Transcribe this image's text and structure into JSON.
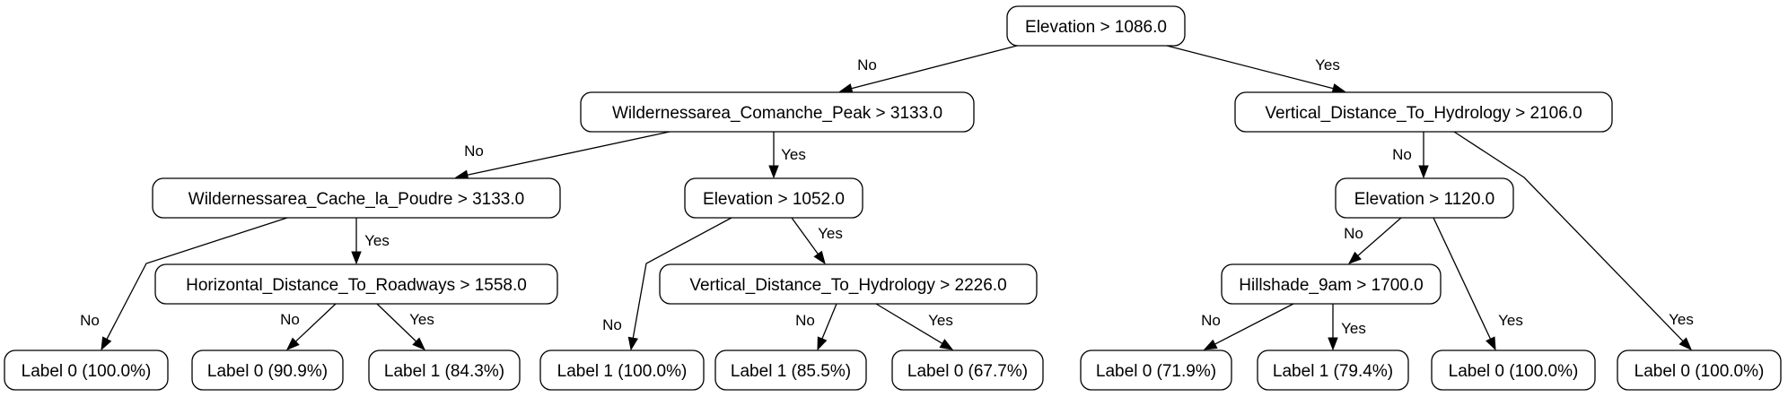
{
  "tree": {
    "nodes": [
      {
        "id": "n0",
        "text": "Elevation > 1086.0"
      },
      {
        "id": "n1",
        "text": "Wildernessarea_Comanche_Peak > 3133.0"
      },
      {
        "id": "n2",
        "text": "Vertical_Distance_To_Hydrology > 2106.0"
      },
      {
        "id": "n3",
        "text": "Wildernessarea_Cache_la_Poudre > 3133.0"
      },
      {
        "id": "n4",
        "text": "Elevation > 1052.0"
      },
      {
        "id": "n5",
        "text": "Elevation > 1120.0"
      },
      {
        "id": "n6",
        "text": "Horizontal_Distance_To_Roadways > 1558.0"
      },
      {
        "id": "n7",
        "text": "Vertical_Distance_To_Hydrology > 2226.0"
      },
      {
        "id": "n8",
        "text": "Hillshade_9am > 1700.0"
      },
      {
        "id": "l1",
        "text": "Label 0 (100.0%)"
      },
      {
        "id": "l2",
        "text": "Label 0 (90.9%)"
      },
      {
        "id": "l3",
        "text": "Label 1 (84.3%)"
      },
      {
        "id": "l4",
        "text": "Label 1 (100.0%)"
      },
      {
        "id": "l5",
        "text": "Label 1 (85.5%)"
      },
      {
        "id": "l6",
        "text": "Label 0 (67.7%)"
      },
      {
        "id": "l7",
        "text": "Label 0 (71.9%)"
      },
      {
        "id": "l8",
        "text": "Label 1 (79.4%)"
      },
      {
        "id": "l9",
        "text": "Label 0 (100.0%)"
      },
      {
        "id": "l10",
        "text": "Label 0 (100.0%)"
      }
    ],
    "edges": [
      {
        "from": "n0",
        "to": "n1",
        "label": "No"
      },
      {
        "from": "n0",
        "to": "n2",
        "label": "Yes"
      },
      {
        "from": "n1",
        "to": "n3",
        "label": "No"
      },
      {
        "from": "n1",
        "to": "n4",
        "label": "Yes"
      },
      {
        "from": "n2",
        "to": "n5",
        "label": "No"
      },
      {
        "from": "n2",
        "to": "l10",
        "label": "Yes"
      },
      {
        "from": "n3",
        "to": "l1",
        "label": "No"
      },
      {
        "from": "n3",
        "to": "n6",
        "label": "Yes"
      },
      {
        "from": "n6",
        "to": "l2",
        "label": "No"
      },
      {
        "from": "n6",
        "to": "l3",
        "label": "Yes"
      },
      {
        "from": "n4",
        "to": "l4",
        "label": "No"
      },
      {
        "from": "n4",
        "to": "n7",
        "label": "Yes"
      },
      {
        "from": "n7",
        "to": "l5",
        "label": "No"
      },
      {
        "from": "n7",
        "to": "l6",
        "label": "Yes"
      },
      {
        "from": "n5",
        "to": "n8",
        "label": "No"
      },
      {
        "from": "n5",
        "to": "l9",
        "label": "Yes"
      },
      {
        "from": "n8",
        "to": "l7",
        "label": "No"
      },
      {
        "from": "n8",
        "to": "l8",
        "label": "Yes"
      }
    ]
  }
}
